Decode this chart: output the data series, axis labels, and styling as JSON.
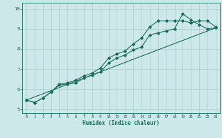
{
  "title": "",
  "xlabel": "Humidex (Indice chaleur)",
  "background_color": "#cce8ea",
  "grid_color": "#aacccc",
  "line_color": "#1a6b5a",
  "xlim": [
    -0.5,
    23.5
  ],
  "ylim": [
    4.8,
    10.3
  ],
  "xticks": [
    0,
    1,
    2,
    3,
    4,
    5,
    6,
    7,
    8,
    9,
    10,
    11,
    12,
    13,
    14,
    15,
    16,
    17,
    18,
    19,
    20,
    21,
    22,
    23
  ],
  "yticks": [
    5,
    6,
    7,
    8,
    9,
    10
  ],
  "series1_x": [
    0,
    1,
    2,
    3,
    4,
    5,
    6,
    7,
    8,
    9,
    10,
    11,
    12,
    13,
    14,
    15,
    16,
    17,
    18,
    19,
    20,
    21,
    22,
    23
  ],
  "series1_y": [
    5.45,
    5.33,
    5.55,
    5.85,
    6.2,
    6.25,
    6.3,
    6.55,
    6.7,
    6.85,
    7.3,
    7.55,
    7.7,
    7.95,
    8.1,
    8.7,
    8.8,
    8.9,
    9.0,
    9.75,
    9.45,
    9.2,
    9.0,
    9.05
  ],
  "series2_x": [
    0,
    1,
    2,
    3,
    4,
    5,
    6,
    7,
    8,
    9,
    10,
    11,
    12,
    13,
    14,
    15,
    16,
    17,
    18,
    19,
    20,
    21,
    22,
    23
  ],
  "series2_y": [
    5.45,
    5.33,
    5.55,
    5.85,
    6.25,
    6.3,
    6.45,
    6.65,
    6.8,
    7.05,
    7.55,
    7.75,
    7.9,
    8.25,
    8.55,
    9.1,
    9.4,
    9.4,
    9.4,
    9.4,
    9.3,
    9.4,
    9.4,
    9.1
  ],
  "series3_x": [
    0,
    23
  ],
  "series3_y": [
    5.45,
    9.05
  ]
}
